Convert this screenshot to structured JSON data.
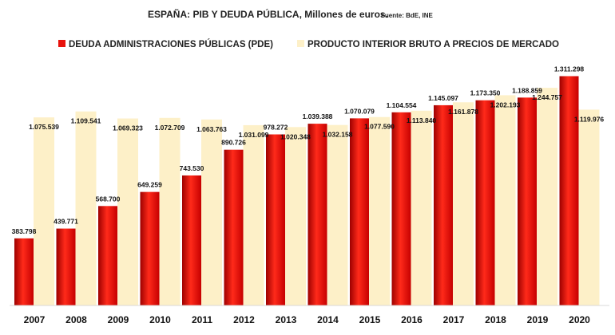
{
  "chart_data": {
    "type": "bar",
    "title": "ESPAÑA: PIB Y DEUDA PÚBLICA, Millones de euros.",
    "source": "Fuente: BdE, INE",
    "categories": [
      "2007",
      "2008",
      "2009",
      "2010",
      "2011",
      "2012",
      "2013",
      "2014",
      "2015",
      "2016",
      "2017",
      "2018",
      "2019",
      "2020"
    ],
    "series": [
      {
        "name": "DEUDA ADMINISTRACIONES PÚBLICAS (PDE)",
        "color": "#e8120c",
        "values": [
          383798,
          439771,
          568700,
          649259,
          743530,
          890726,
          978272,
          1039388,
          1070079,
          1104554,
          1145097,
          1173350,
          1188859,
          1311298
        ],
        "labels": [
          "383.798",
          "439.771",
          "568.700",
          "649.259",
          "743.530",
          "890.726",
          "978.272",
          "1.039.388",
          "1.070.079",
          "1.104.554",
          "1.145.097",
          "1.173.350",
          "1.188.859",
          "1.311.298"
        ]
      },
      {
        "name": "PRODUCTO INTERIOR BRUTO A PRECIOS DE MERCADO",
        "color": "#fdf0c8",
        "values": [
          1075539,
          1109541,
          1069323,
          1072709,
          1063763,
          1031099,
          1020348,
          1032158,
          1077590,
          1113840,
          1161878,
          1202193,
          1244757,
          1119976
        ],
        "labels": [
          "1.075.539",
          "1.109.541",
          "1.069.323",
          "1.072.709",
          "1.063.763",
          "1.031.099",
          "1.020.348",
          "1.032.158",
          "1.077.590",
          "1.113.840",
          "1.161.878",
          "1.202.193",
          "1.244.757",
          "1.119.976"
        ]
      }
    ],
    "ylim": [
      0,
      1350000
    ],
    "grid": false,
    "legend_position": "top"
  }
}
